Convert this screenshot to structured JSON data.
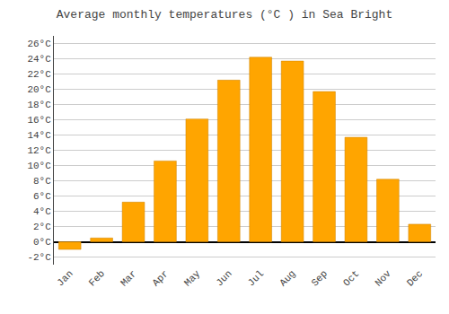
{
  "chart_data": {
    "type": "bar",
    "title": "Average monthly temperatures (°C ) in Sea Bright",
    "categories": [
      "Jan",
      "Feb",
      "Mar",
      "Apr",
      "May",
      "Jun",
      "Jul",
      "Aug",
      "Sep",
      "Oct",
      "Nov",
      "Dec"
    ],
    "values": [
      -1.0,
      0.5,
      5.2,
      10.6,
      16.1,
      21.2,
      24.2,
      23.7,
      19.7,
      13.7,
      8.2,
      2.3
    ],
    "color": "#FFA500",
    "ylim": [
      -3,
      27
    ],
    "yticks": [
      {
        "value": -2,
        "label": "-2°C"
      },
      {
        "value": 0,
        "label": "0°C"
      },
      {
        "value": 2,
        "label": "2°C"
      },
      {
        "value": 4,
        "label": "4°C"
      },
      {
        "value": 6,
        "label": "6°C"
      },
      {
        "value": 8,
        "label": "8°C"
      },
      {
        "value": 10,
        "label": "10°C"
      },
      {
        "value": 12,
        "label": "12°C"
      },
      {
        "value": 14,
        "label": "14°C"
      },
      {
        "value": 16,
        "label": "16°C"
      },
      {
        "value": 18,
        "label": "18°C"
      },
      {
        "value": 20,
        "label": "20°C"
      },
      {
        "value": 22,
        "label": "22°C"
      },
      {
        "value": 24,
        "label": "24°C"
      },
      {
        "value": 26,
        "label": "26°C"
      }
    ],
    "grid": true
  }
}
